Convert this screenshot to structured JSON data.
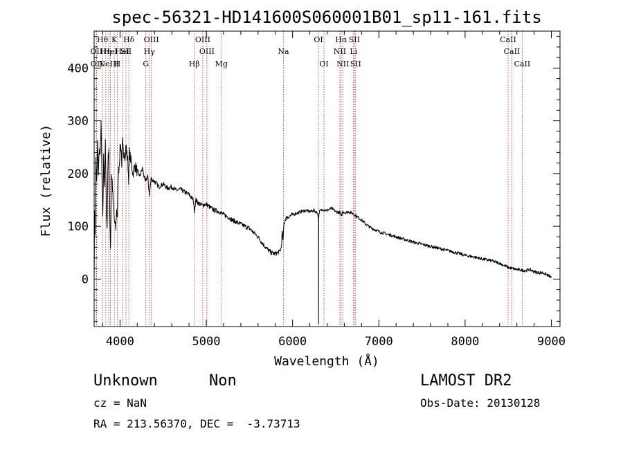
{
  "chart_data": {
    "type": "line",
    "title": "spec-56321-HD141600S060001B01_sp11-161.fits",
    "xlabel": "Wavelength (Å)",
    "ylabel": "Flux (relative)",
    "xlim": [
      3700,
      9100
    ],
    "ylim": [
      -90,
      470
    ],
    "xticks": [
      4000,
      5000,
      6000,
      7000,
      8000,
      9000
    ],
    "yticks": [
      0,
      100,
      200,
      300,
      400
    ],
    "xtick_labels": [
      "4000",
      "5000",
      "6000",
      "7000",
      "8000",
      "9000"
    ],
    "ytick_labels": [
      "0",
      "100",
      "200",
      "300",
      "400"
    ],
    "series": [
      {
        "name": "spectrum",
        "color": "#000000",
        "points": [
          [
            3700,
            0
          ],
          [
            3705,
            120
          ],
          [
            3712,
            90
          ],
          [
            3720,
            230
          ],
          [
            3730,
            180
          ],
          [
            3740,
            260
          ],
          [
            3750,
            200
          ],
          [
            3760,
            250
          ],
          [
            3770,
            230
          ],
          [
            3780,
            300
          ],
          [
            3790,
            200
          ],
          [
            3800,
            110
          ],
          [
            3810,
            230
          ],
          [
            3820,
            180
          ],
          [
            3830,
            255
          ],
          [
            3840,
            150
          ],
          [
            3850,
            95
          ],
          [
            3860,
            220
          ],
          [
            3870,
            250
          ],
          [
            3880,
            130
          ],
          [
            3890,
            60
          ],
          [
            3900,
            200
          ],
          [
            3910,
            185
          ],
          [
            3920,
            145
          ],
          [
            3935,
            110
          ],
          [
            3950,
            95
          ],
          [
            3960,
            130
          ],
          [
            3970,
            120
          ],
          [
            3980,
            200
          ],
          [
            3990,
            215
          ],
          [
            4000,
            245
          ],
          [
            4010,
            255
          ],
          [
            4020,
            220
          ],
          [
            4030,
            260
          ],
          [
            4040,
            230
          ],
          [
            4050,
            245
          ],
          [
            4060,
            230
          ],
          [
            4070,
            255
          ],
          [
            4080,
            235
          ],
          [
            4090,
            225
          ],
          [
            4100,
            190
          ],
          [
            4110,
            240
          ],
          [
            4130,
            220
          ],
          [
            4150,
            200
          ],
          [
            4170,
            215
          ],
          [
            4200,
            205
          ],
          [
            4230,
            195
          ],
          [
            4260,
            210
          ],
          [
            4290,
            185
          ],
          [
            4320,
            195
          ],
          [
            4340,
            160
          ],
          [
            4360,
            190
          ],
          [
            4400,
            185
          ],
          [
            4450,
            175
          ],
          [
            4500,
            180
          ],
          [
            4550,
            172
          ],
          [
            4600,
            175
          ],
          [
            4650,
            168
          ],
          [
            4700,
            170
          ],
          [
            4750,
            165
          ],
          [
            4800,
            160
          ],
          [
            4850,
            150
          ],
          [
            4861,
            130
          ],
          [
            4880,
            150
          ],
          [
            4900,
            145
          ],
          [
            4950,
            140
          ],
          [
            5000,
            142
          ],
          [
            5050,
            135
          ],
          [
            5100,
            130
          ],
          [
            5150,
            128
          ],
          [
            5200,
            122
          ],
          [
            5250,
            118
          ],
          [
            5300,
            112
          ],
          [
            5350,
            108
          ],
          [
            5400,
            104
          ],
          [
            5450,
            100
          ],
          [
            5500,
            96
          ],
          [
            5550,
            88
          ],
          [
            5600,
            80
          ],
          [
            5650,
            68
          ],
          [
            5700,
            58
          ],
          [
            5750,
            50
          ],
          [
            5800,
            48
          ],
          [
            5850,
            52
          ],
          [
            5870,
            60
          ],
          [
            5880,
            90
          ],
          [
            5890,
            72
          ],
          [
            5900,
            105
          ],
          [
            5920,
            115
          ],
          [
            5950,
            118
          ],
          [
            6000,
            122
          ],
          [
            6050,
            125
          ],
          [
            6100,
            128
          ],
          [
            6150,
            130
          ],
          [
            6200,
            128
          ],
          [
            6250,
            130
          ],
          [
            6290,
            125
          ],
          [
            6300,
            115
          ],
          [
            6301,
            -85
          ],
          [
            6302,
            115
          ],
          [
            6310,
            128
          ],
          [
            6350,
            132
          ],
          [
            6400,
            130
          ],
          [
            6450,
            134
          ],
          [
            6500,
            128
          ],
          [
            6550,
            126
          ],
          [
            6563,
            118
          ],
          [
            6580,
            128
          ],
          [
            6620,
            126
          ],
          [
            6650,
            128
          ],
          [
            6700,
            124
          ],
          [
            6750,
            118
          ],
          [
            6800,
            112
          ],
          [
            6850,
            104
          ],
          [
            6900,
            98
          ],
          [
            6950,
            94
          ],
          [
            7000,
            90
          ],
          [
            7100,
            85
          ],
          [
            7200,
            80
          ],
          [
            7300,
            75
          ],
          [
            7400,
            70
          ],
          [
            7500,
            66
          ],
          [
            7600,
            62
          ],
          [
            7700,
            58
          ],
          [
            7800,
            54
          ],
          [
            7900,
            50
          ],
          [
            8000,
            45
          ],
          [
            8100,
            42
          ],
          [
            8200,
            38
          ],
          [
            8300,
            35
          ],
          [
            8400,
            30
          ],
          [
            8500,
            22
          ],
          [
            8600,
            18
          ],
          [
            8700,
            16
          ],
          [
            8750,
            18
          ],
          [
            8800,
            14
          ],
          [
            8850,
            12
          ],
          [
            8900,
            12
          ],
          [
            8950,
            8
          ],
          [
            9000,
            3
          ]
        ]
      }
    ],
    "lines": [
      {
        "wavelength": 3726,
        "label": "OII",
        "row": 2
      },
      {
        "wavelength": 3729,
        "label": "OII",
        "row": 3
      },
      {
        "wavelength": 3797,
        "label": "Hθ",
        "row": 1
      },
      {
        "wavelength": 3835,
        "label": "Hη",
        "row": 2
      },
      {
        "wavelength": 3869,
        "label": "NeIII",
        "row": 3
      },
      {
        "wavelength": 3889,
        "label": "HeI",
        "row": 2
      },
      {
        "wavelength": 3934,
        "label": "K",
        "row": 1
      },
      {
        "wavelength": 3968,
        "label": "H",
        "row": 3
      },
      {
        "wavelength": 4026,
        "label": "HeI",
        "row": 2
      },
      {
        "wavelength": 4069,
        "label": "SII",
        "row": 2
      },
      {
        "wavelength": 4102,
        "label": "Hδ",
        "row": 1
      },
      {
        "wavelength": 4300,
        "label": "G",
        "row": 3
      },
      {
        "wavelength": 4340,
        "label": "Hγ",
        "row": 2
      },
      {
        "wavelength": 4363,
        "label": "OIII",
        "row": 1
      },
      {
        "wavelength": 4861,
        "label": "Hβ",
        "row": 3
      },
      {
        "wavelength": 4959,
        "label": "OIII",
        "row": 1
      },
      {
        "wavelength": 5007,
        "label": "OIII",
        "row": 2
      },
      {
        "wavelength": 5175,
        "label": "Mg",
        "row": 3
      },
      {
        "wavelength": 5894,
        "label": "Na",
        "row": 2
      },
      {
        "wavelength": 6300,
        "label": "OI",
        "row": 1
      },
      {
        "wavelength": 6364,
        "label": "OI",
        "row": 3
      },
      {
        "wavelength": 6548,
        "label": "NII",
        "row": 2
      },
      {
        "wavelength": 6563,
        "label": "Hα",
        "row": 1
      },
      {
        "wavelength": 6583,
        "label": "NII",
        "row": 3
      },
      {
        "wavelength": 6707,
        "label": "Li",
        "row": 2
      },
      {
        "wavelength": 6716,
        "label": "SII",
        "row": 1
      },
      {
        "wavelength": 6731,
        "label": "SII",
        "row": 3
      },
      {
        "wavelength": 8498,
        "label": "CaII",
        "row": 1
      },
      {
        "wavelength": 8542,
        "label": "CaII",
        "row": 2
      },
      {
        "wavelength": 8662,
        "label": "CaII",
        "row": 3
      }
    ],
    "grid": false
  },
  "info": {
    "class_label": "Unknown",
    "subclass_label": "Non",
    "survey": "LAMOST DR2",
    "cz": "cz = NaN",
    "obs_date": "Obs-Date: 20130128",
    "coords": "RA = 213.56370, DEC =  -3.73713"
  },
  "colors": {
    "spectrum": "#000000",
    "line_markers": "#b22222",
    "axes": "#000000",
    "background": "#ffffff"
  }
}
